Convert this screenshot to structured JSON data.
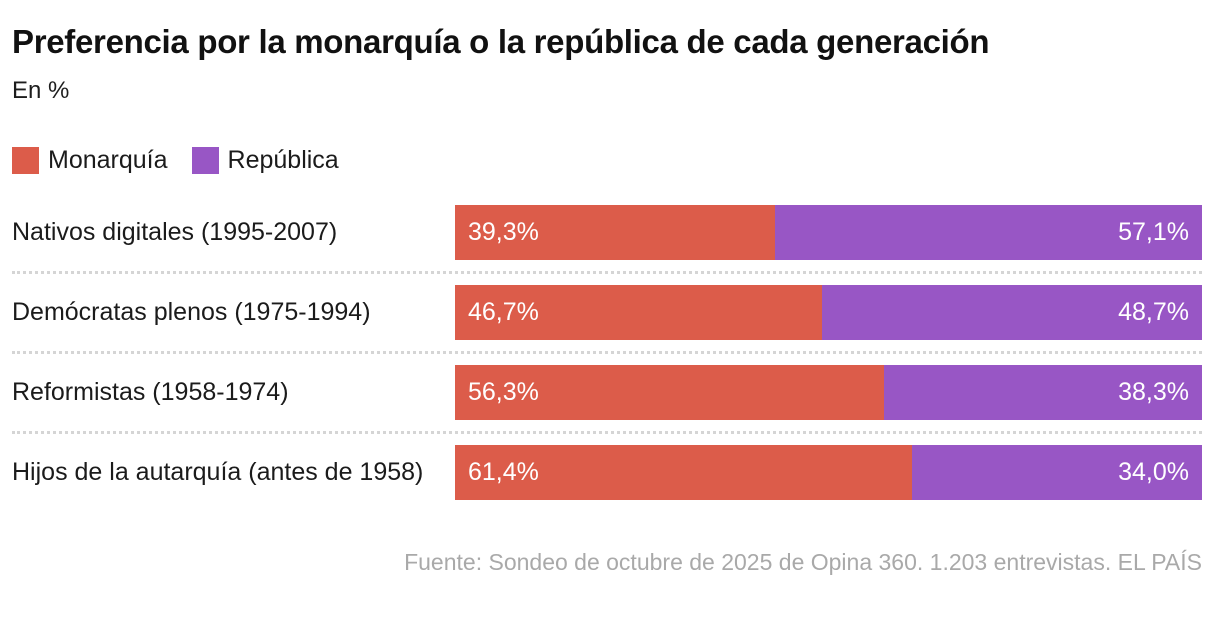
{
  "header": {
    "title": "Preferencia por la monarquía o la república de cada generación",
    "subtitle": "En %"
  },
  "chart_data": {
    "type": "bar",
    "orientation": "horizontal",
    "stacked": true,
    "normalized_per_row": true,
    "title": "Preferencia por la monarquía o la república de cada generación",
    "subtitle": "En %",
    "unit": "%",
    "legend_position": "top",
    "grid": false,
    "categories": [
      "Nativos digitales (1995-2007)",
      "Demócratas plenos (1975-1994)",
      "Reformistas (1958-1974)",
      "Hijos de la autarquía (antes de 1958)"
    ],
    "series": [
      {
        "name": "Monarquía",
        "color": "#dc5c4a",
        "values": [
          39.3,
          46.7,
          56.3,
          61.4
        ],
        "labels": [
          "39,3%",
          "46,7%",
          "56,3%",
          "61,4%"
        ]
      },
      {
        "name": "República",
        "color": "#9856c5",
        "values": [
          57.1,
          48.7,
          38.3,
          34.0
        ],
        "labels": [
          "57,1%",
          "48,7%",
          "38,3%",
          "34,0%"
        ]
      }
    ]
  },
  "colors": {
    "monarquia": "#dc5c4a",
    "republica": "#9856c5",
    "separator": "#d5d5d5",
    "source_text": "#a9a9a9"
  },
  "footer": {
    "source": "Fuente: Sondeo de octubre de 2025 de Opina 360. 1.203 entrevistas. EL PAÍS"
  }
}
